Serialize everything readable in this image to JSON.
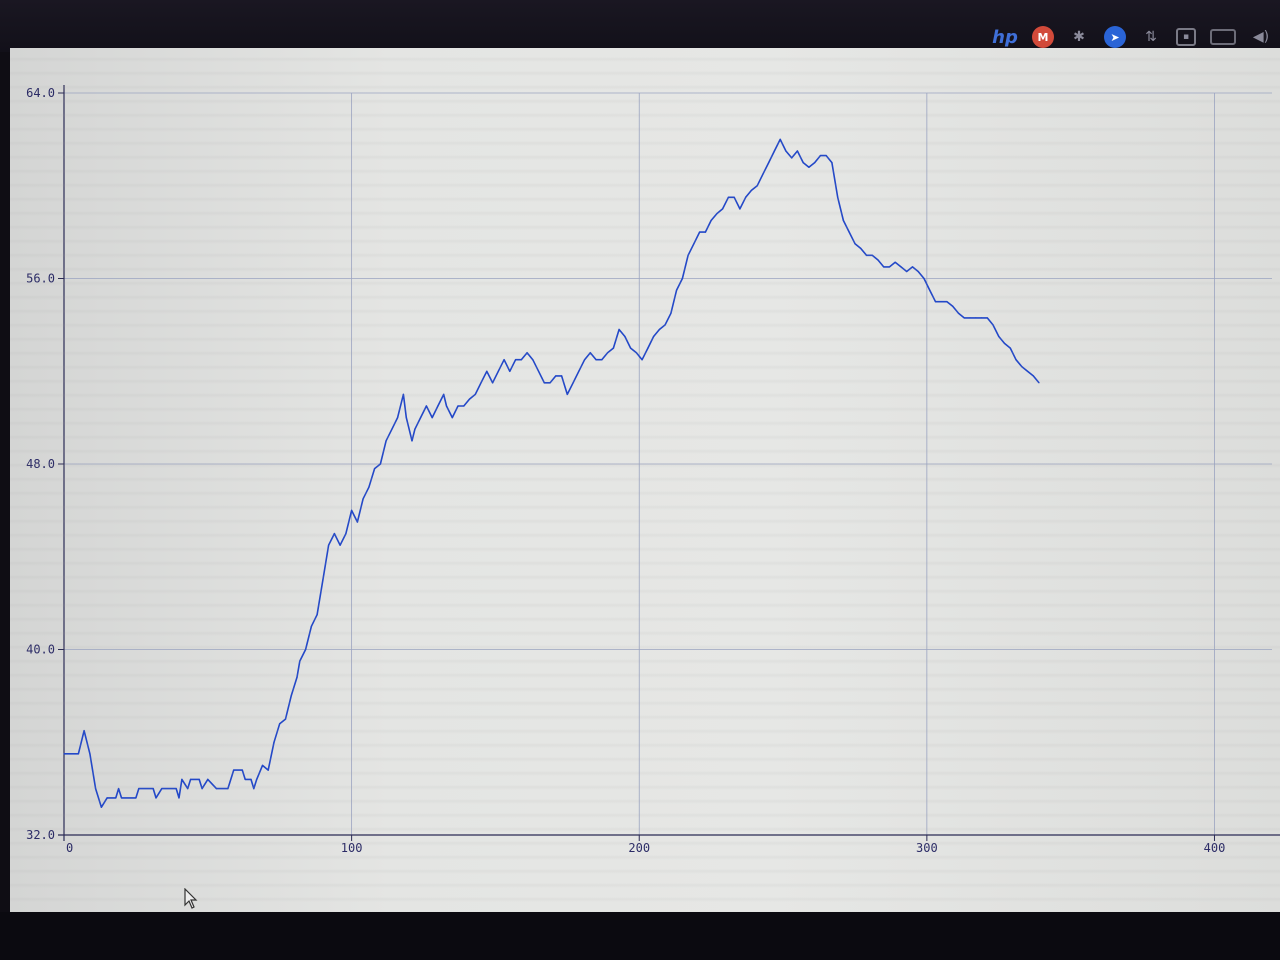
{
  "tray": {
    "icons": [
      {
        "name": "hp-logo-icon",
        "glyph": "hp"
      },
      {
        "name": "gmail-icon",
        "glyph": "M"
      },
      {
        "name": "puzzle-icon",
        "glyph": "✱"
      },
      {
        "name": "send-arrow-icon",
        "glyph": "➤"
      },
      {
        "name": "network-transfer-icon",
        "glyph": "⇅"
      },
      {
        "name": "app-box-icon",
        "glyph": "▪"
      },
      {
        "name": "battery-icon",
        "glyph": ""
      },
      {
        "name": "volume-icon",
        "glyph": "◀)"
      }
    ]
  },
  "chart_data": {
    "type": "line",
    "title": "",
    "xlabel": "",
    "ylabel": "",
    "xlim": [
      0,
      420
    ],
    "ylim": [
      32,
      64
    ],
    "x_ticks": [
      0,
      100,
      200,
      300,
      400
    ],
    "x_tick_labels": [
      "0",
      "100",
      "200",
      "300",
      "400"
    ],
    "y_ticks": [
      32,
      40,
      48,
      56,
      64
    ],
    "y_tick_labels": [
      "32.0",
      "40.0",
      "48.0",
      "56.0",
      "64.0"
    ],
    "grid": true,
    "line_color": "#2348c8",
    "series": [
      {
        "name": "",
        "points": [
          [
            0,
            35.5
          ],
          [
            5,
            35.5
          ],
          [
            7,
            36.5
          ],
          [
            9,
            35.5
          ],
          [
            11,
            34
          ],
          [
            13,
            33.2
          ],
          [
            15,
            33.6
          ],
          [
            18,
            33.6
          ],
          [
            19,
            34
          ],
          [
            20,
            33.6
          ],
          [
            25,
            33.6
          ],
          [
            26,
            34
          ],
          [
            31,
            34
          ],
          [
            32,
            33.6
          ],
          [
            34,
            34
          ],
          [
            39,
            34
          ],
          [
            40,
            33.6
          ],
          [
            41,
            34.4
          ],
          [
            43,
            34
          ],
          [
            44,
            34.4
          ],
          [
            47,
            34.4
          ],
          [
            48,
            34
          ],
          [
            50,
            34.4
          ],
          [
            53,
            34
          ],
          [
            57,
            34
          ],
          [
            59,
            34.8
          ],
          [
            62,
            34.8
          ],
          [
            63,
            34.4
          ],
          [
            65,
            34.4
          ],
          [
            66,
            34
          ],
          [
            67,
            34.4
          ],
          [
            69,
            35
          ],
          [
            71,
            34.8
          ],
          [
            73,
            36
          ],
          [
            75,
            36.8
          ],
          [
            77,
            37
          ],
          [
            79,
            38
          ],
          [
            81,
            38.8
          ],
          [
            82,
            39.5
          ],
          [
            84,
            40
          ],
          [
            86,
            41
          ],
          [
            88,
            41.5
          ],
          [
            90,
            43
          ],
          [
            92,
            44.5
          ],
          [
            94,
            45
          ],
          [
            96,
            44.5
          ],
          [
            98,
            45
          ],
          [
            100,
            46
          ],
          [
            102,
            45.5
          ],
          [
            104,
            46.5
          ],
          [
            106,
            47
          ],
          [
            108,
            47.8
          ],
          [
            110,
            48
          ],
          [
            112,
            49
          ],
          [
            114,
            49.5
          ],
          [
            116,
            50
          ],
          [
            118,
            51
          ],
          [
            119,
            50
          ],
          [
            121,
            49
          ],
          [
            122,
            49.5
          ],
          [
            124,
            50
          ],
          [
            126,
            50.5
          ],
          [
            128,
            50
          ],
          [
            130,
            50.5
          ],
          [
            132,
            51
          ],
          [
            133,
            50.5
          ],
          [
            135,
            50
          ],
          [
            137,
            50.5
          ],
          [
            139,
            50.5
          ],
          [
            141,
            50.8
          ],
          [
            143,
            51
          ],
          [
            145,
            51.5
          ],
          [
            147,
            52
          ],
          [
            149,
            51.5
          ],
          [
            151,
            52
          ],
          [
            153,
            52.5
          ],
          [
            155,
            52
          ],
          [
            157,
            52.5
          ],
          [
            159,
            52.5
          ],
          [
            161,
            52.8
          ],
          [
            163,
            52.5
          ],
          [
            165,
            52
          ],
          [
            167,
            51.5
          ],
          [
            169,
            51.5
          ],
          [
            171,
            51.8
          ],
          [
            173,
            51.8
          ],
          [
            175,
            51
          ],
          [
            177,
            51.5
          ],
          [
            179,
            52
          ],
          [
            181,
            52.5
          ],
          [
            183,
            52.8
          ],
          [
            185,
            52.5
          ],
          [
            187,
            52.5
          ],
          [
            189,
            52.8
          ],
          [
            191,
            53
          ],
          [
            193,
            53.8
          ],
          [
            195,
            53.5
          ],
          [
            197,
            53
          ],
          [
            199,
            52.8
          ],
          [
            201,
            52.5
          ],
          [
            203,
            53
          ],
          [
            205,
            53.5
          ],
          [
            207,
            53.8
          ],
          [
            209,
            54
          ],
          [
            211,
            54.5
          ],
          [
            213,
            55.5
          ],
          [
            215,
            56
          ],
          [
            217,
            57
          ],
          [
            219,
            57.5
          ],
          [
            221,
            58
          ],
          [
            223,
            58
          ],
          [
            225,
            58.5
          ],
          [
            227,
            58.8
          ],
          [
            229,
            59
          ],
          [
            231,
            59.5
          ],
          [
            233,
            59.5
          ],
          [
            235,
            59
          ],
          [
            237,
            59.5
          ],
          [
            239,
            59.8
          ],
          [
            241,
            60
          ],
          [
            243,
            60.5
          ],
          [
            245,
            61
          ],
          [
            247,
            61.5
          ],
          [
            249,
            62
          ],
          [
            251,
            61.5
          ],
          [
            253,
            61.2
          ],
          [
            255,
            61.5
          ],
          [
            257,
            61
          ],
          [
            259,
            60.8
          ],
          [
            261,
            61
          ],
          [
            263,
            61.3
          ],
          [
            265,
            61.3
          ],
          [
            267,
            61
          ],
          [
            269,
            59.5
          ],
          [
            271,
            58.5
          ],
          [
            273,
            58
          ],
          [
            275,
            57.5
          ],
          [
            277,
            57.3
          ],
          [
            279,
            57
          ],
          [
            281,
            57
          ],
          [
            283,
            56.8
          ],
          [
            285,
            56.5
          ],
          [
            287,
            56.5
          ],
          [
            289,
            56.7
          ],
          [
            291,
            56.5
          ],
          [
            293,
            56.3
          ],
          [
            295,
            56.5
          ],
          [
            297,
            56.3
          ],
          [
            299,
            56
          ],
          [
            301,
            55.5
          ],
          [
            303,
            55
          ],
          [
            305,
            55
          ],
          [
            307,
            55
          ],
          [
            309,
            54.8
          ],
          [
            311,
            54.5
          ],
          [
            313,
            54.3
          ],
          [
            315,
            54.3
          ],
          [
            317,
            54.3
          ],
          [
            319,
            54.3
          ],
          [
            321,
            54.3
          ],
          [
            323,
            54
          ],
          [
            325,
            53.5
          ],
          [
            327,
            53.2
          ],
          [
            329,
            53
          ],
          [
            331,
            52.5
          ],
          [
            333,
            52.2
          ],
          [
            335,
            52
          ],
          [
            337,
            51.8
          ],
          [
            339,
            51.5
          ]
        ]
      }
    ]
  }
}
